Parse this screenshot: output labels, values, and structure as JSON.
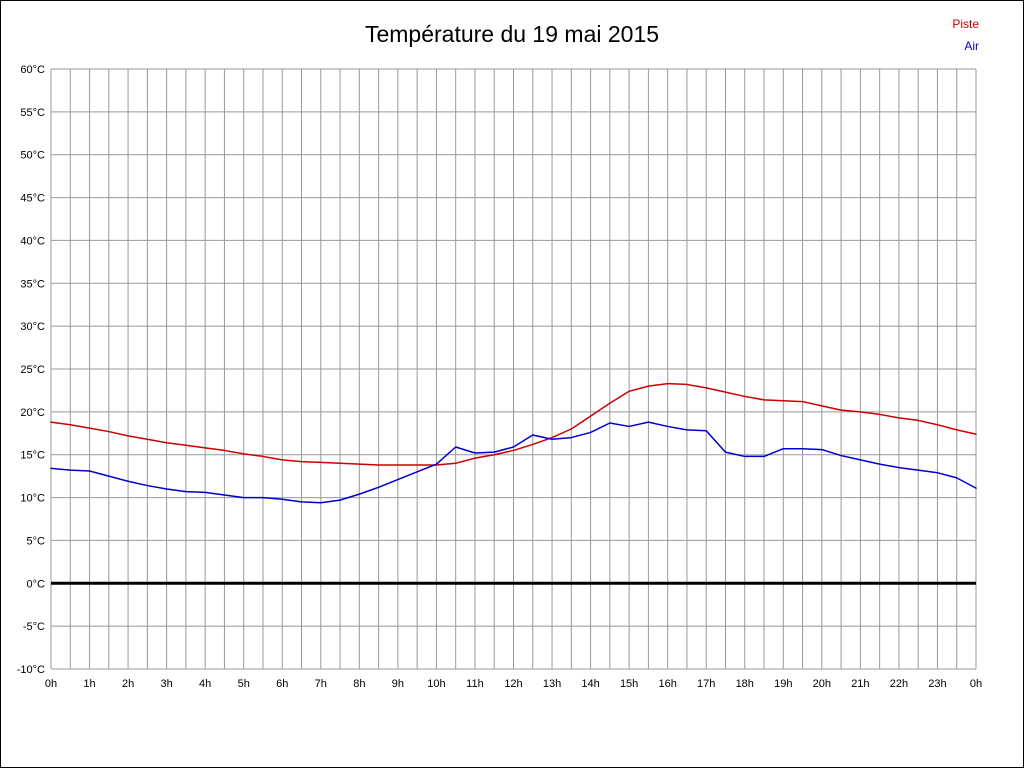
{
  "title": "Température du 19 mai 2015",
  "legend": {
    "piste_label": "Piste",
    "air_label": "Air",
    "piste_color": "#cc0000",
    "air_color": "#0000cc"
  },
  "chart_data": {
    "type": "line",
    "title": "Température du 19 mai 2015",
    "xlabel": "",
    "ylabel": "",
    "y_unit": "°C",
    "xlim": [
      0,
      24
    ],
    "ylim": [
      -10,
      60
    ],
    "y_tick_step": 5,
    "x_tick_step": 1,
    "x_tick_labels": [
      "0h",
      "1h",
      "2h",
      "3h",
      "4h",
      "5h",
      "6h",
      "7h",
      "8h",
      "9h",
      "10h",
      "11h",
      "12h",
      "13h",
      "14h",
      "15h",
      "16h",
      "17h",
      "18h",
      "19h",
      "20h",
      "21h",
      "22h",
      "23h",
      "0h"
    ],
    "grid": {
      "on": true,
      "x_step": 0.5,
      "color": "#999999"
    },
    "zero_line": {
      "value": 0,
      "color": "#000000",
      "width": 3
    },
    "legend_position": "top-right",
    "series": [
      {
        "name": "Piste",
        "color": "#cc0000",
        "x_step": 0.5,
        "values": [
          18.8,
          18.5,
          18.1,
          17.7,
          17.2,
          16.8,
          16.4,
          16.1,
          15.8,
          15.5,
          15.1,
          14.8,
          14.4,
          14.2,
          14.1,
          14.0,
          13.9,
          13.8,
          13.8,
          13.8,
          13.8,
          14.0,
          14.6,
          15.0,
          15.5,
          16.2,
          17.0,
          18.0,
          19.5,
          21.0,
          22.4,
          23.0,
          23.3,
          23.2,
          22.8,
          22.3,
          21.8,
          21.4,
          21.3,
          21.2,
          20.7,
          20.2,
          20.0,
          19.7,
          19.3,
          19.0,
          18.5,
          17.9,
          17.4
        ]
      },
      {
        "name": "Air",
        "color": "#0000cc",
        "x_step": 0.5,
        "values": [
          13.4,
          13.2,
          13.1,
          12.5,
          11.9,
          11.4,
          11.0,
          10.7,
          10.6,
          10.3,
          10.0,
          10.0,
          9.8,
          9.5,
          9.4,
          9.7,
          10.4,
          11.2,
          12.1,
          13.0,
          13.9,
          15.9,
          15.2,
          15.3,
          15.9,
          17.3,
          16.8,
          17.0,
          17.6,
          18.7,
          18.3,
          18.8,
          18.3,
          17.9,
          17.8,
          15.3,
          14.8,
          14.8,
          15.7,
          15.7,
          15.6,
          14.9,
          14.4,
          13.9,
          13.5,
          13.2,
          12.9,
          12.3,
          11.1
        ]
      }
    ]
  }
}
